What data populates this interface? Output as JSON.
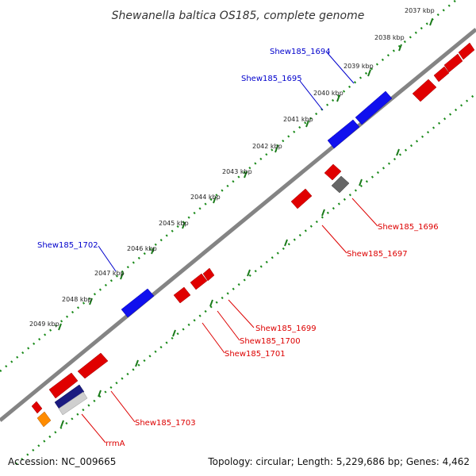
{
  "title": "Shewanella baltica OS185, complete genome",
  "ticks": [
    "2037 kbp",
    "2038 kbp",
    "2039 kbp",
    "2040 kbp",
    "2041 kbp",
    "2042 kbp",
    "2043 kbp",
    "2044 kbp",
    "2045 kbp",
    "2046 kbp",
    "2047 kbp",
    "2048 kbp",
    "2049 kbp"
  ],
  "genes": [
    {
      "label": "Shew185_1694",
      "color": "#0000ee",
      "strand": "forward"
    },
    {
      "label": "Shew185_1695",
      "color": "#0000ee",
      "strand": "forward"
    },
    {
      "label": "Shew185_1696",
      "color": "#dd0000",
      "strand": "reverse"
    },
    {
      "label": "Shew185_1697",
      "color": "#dd0000",
      "strand": "reverse"
    },
    {
      "label": "Shew185_1699",
      "color": "#dd0000",
      "strand": "reverse"
    },
    {
      "label": "Shew185_1700",
      "color": "#dd0000",
      "strand": "reverse"
    },
    {
      "label": "Shew185_1701",
      "color": "#dd0000",
      "strand": "reverse"
    },
    {
      "label": "Shew185_1702",
      "color": "#0000ee",
      "strand": "forward"
    },
    {
      "label": "Shew185_1703",
      "color": "#dd0000",
      "strand": "reverse"
    },
    {
      "label": "rrmA",
      "color": "#dd0000",
      "strand": "reverse"
    }
  ],
  "footer": {
    "accession": "Accession: NC_009665",
    "summary": "Topology: circular; Length: 5,229,686 bp; Genes: 4,462"
  },
  "colors": {
    "forward_gene": "#0000ee",
    "reverse_gene": "#dd0000",
    "trna_gene": "#1a1a80",
    "rrna_gene": "#ff8c00",
    "pseudo_gene": "#666666",
    "backbone": "#888888",
    "tick_marks": "#006600"
  }
}
